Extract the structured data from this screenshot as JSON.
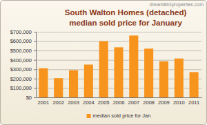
{
  "chart_data": {
    "type": "bar",
    "title": "South Walton Homes (detached)",
    "subtitle": "median sold price for January",
    "annotations": [
      "dreamBIGproperties.com"
    ],
    "categories": [
      "2001",
      "2002",
      "2003",
      "2004",
      "2005",
      "2006",
      "2007",
      "2008",
      "2009",
      "2010",
      "2011"
    ],
    "series": [
      {
        "name": "median sold price for Jan",
        "color": "#f7941d",
        "values": [
          310000,
          205000,
          290000,
          350000,
          600000,
          535000,
          660000,
          520000,
          385000,
          415000,
          270000
        ]
      }
    ],
    "ylim": [
      0,
      700000
    ],
    "yticks": [
      {
        "value": 0,
        "label": "$0"
      },
      {
        "value": 100000,
        "label": "$100,000"
      },
      {
        "value": 200000,
        "label": "$200,000"
      },
      {
        "value": 300000,
        "label": "$300,000"
      },
      {
        "value": 400000,
        "label": "$400,000"
      },
      {
        "value": 500000,
        "label": "$500,000"
      },
      {
        "value": 600000,
        "label": "$600,000"
      },
      {
        "value": 700000,
        "label": "$700,000"
      }
    ],
    "grid": true,
    "legend": "bottom"
  }
}
